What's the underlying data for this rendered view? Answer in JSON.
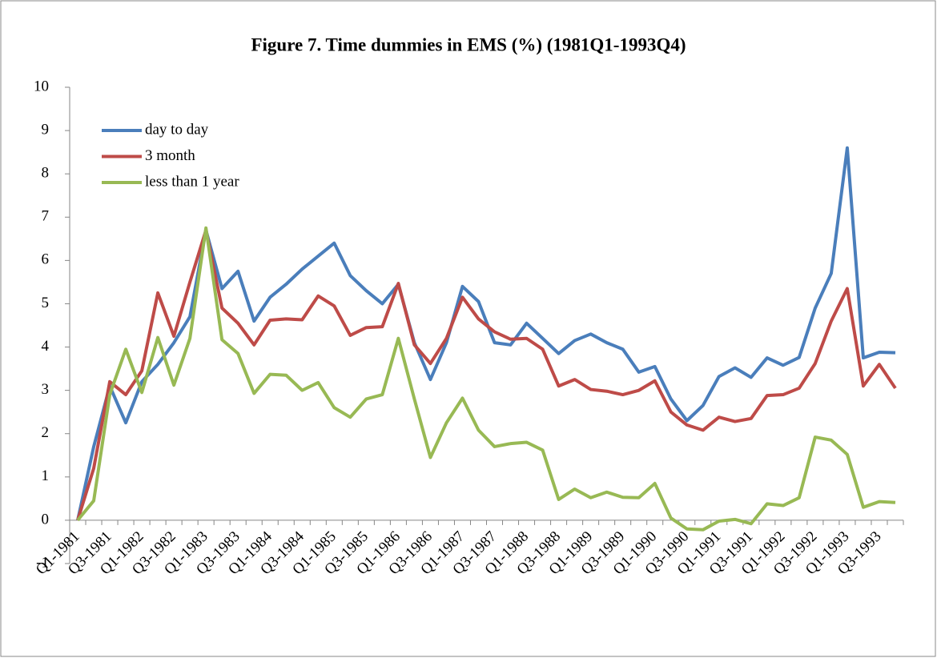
{
  "chart_data": {
    "type": "line",
    "title": "Figure 7. Time dummies  in EMS (%) (1981Q1-1993Q4)",
    "categories": [
      "Q1-1981",
      null,
      "Q3-1981",
      null,
      "Q1-1982",
      null,
      "Q3-1982",
      null,
      "Q1-1983",
      null,
      "Q3-1983",
      null,
      "Q1-1984",
      null,
      "Q3-1984",
      null,
      "Q1-1985",
      null,
      "Q3-1985",
      null,
      "Q1-1986",
      null,
      "Q3-1986",
      null,
      "Q1-1987",
      null,
      "Q3-1987",
      null,
      "Q1-1988",
      null,
      "Q3-1988",
      null,
      "Q1-1989",
      null,
      "Q3-1989",
      null,
      "Q1-1990",
      null,
      "Q3-1990",
      null,
      "Q1-1991",
      null,
      "Q3-1991",
      null,
      "Q1-1992",
      null,
      "Q3-1992",
      null,
      "Q1-1993",
      null,
      "Q3-1993",
      null
    ],
    "series": [
      {
        "name": "day to day",
        "color": "#4a7ebb",
        "values": [
          0,
          1.7,
          3.1,
          2.25,
          3.2,
          3.6,
          4.1,
          4.7,
          6.7,
          5.35,
          5.75,
          4.6,
          5.15,
          5.45,
          5.8,
          6.1,
          6.4,
          5.65,
          5.3,
          5.0,
          5.45,
          4.1,
          3.25,
          4.1,
          5.4,
          5.05,
          4.1,
          4.05,
          4.55,
          4.2,
          3.85,
          4.15,
          4.3,
          4.1,
          3.95,
          3.42,
          3.55,
          2.8,
          2.3,
          2.65,
          3.32,
          3.52,
          3.3,
          3.75,
          3.58,
          3.76,
          4.9,
          5.7,
          8.6,
          3.75,
          3.88,
          3.87
        ]
      },
      {
        "name": "3 month",
        "color": "#be4b48",
        "values": [
          0,
          1.2,
          3.2,
          2.9,
          3.45,
          5.25,
          4.25,
          5.5,
          6.7,
          4.9,
          4.55,
          4.05,
          4.62,
          4.65,
          4.63,
          5.18,
          4.95,
          4.27,
          4.45,
          4.47,
          5.47,
          4.05,
          3.62,
          4.2,
          5.15,
          4.65,
          4.35,
          4.18,
          4.2,
          3.95,
          3.1,
          3.25,
          3.02,
          2.98,
          2.9,
          3.0,
          3.22,
          2.5,
          2.2,
          2.08,
          2.38,
          2.28,
          2.35,
          2.88,
          2.9,
          3.05,
          3.62,
          4.6,
          5.35,
          3.1,
          3.6,
          3.05
        ]
      },
      {
        "name": "less than 1 year",
        "color": "#98b954",
        "values": [
          0,
          0.45,
          2.9,
          3.95,
          2.95,
          4.22,
          3.12,
          4.2,
          6.75,
          4.17,
          3.85,
          2.93,
          3.37,
          3.35,
          3.0,
          3.18,
          2.6,
          2.38,
          2.8,
          2.9,
          4.2,
          2.8,
          1.45,
          2.25,
          2.82,
          2.08,
          1.7,
          1.77,
          1.8,
          1.62,
          0.48,
          0.72,
          0.52,
          0.65,
          0.53,
          0.52,
          0.85,
          0.05,
          -0.2,
          -0.22,
          -0.02,
          0.02,
          -0.08,
          0.38,
          0.34,
          0.52,
          1.92,
          1.85,
          1.52,
          0.3,
          0.43,
          0.41
        ]
      }
    ],
    "ylim": [
      -1,
      10
    ],
    "yticks": [
      -1,
      0,
      1,
      2,
      3,
      4,
      5,
      6,
      7,
      8,
      9,
      10
    ],
    "grid": false,
    "legend": "top-left"
  }
}
